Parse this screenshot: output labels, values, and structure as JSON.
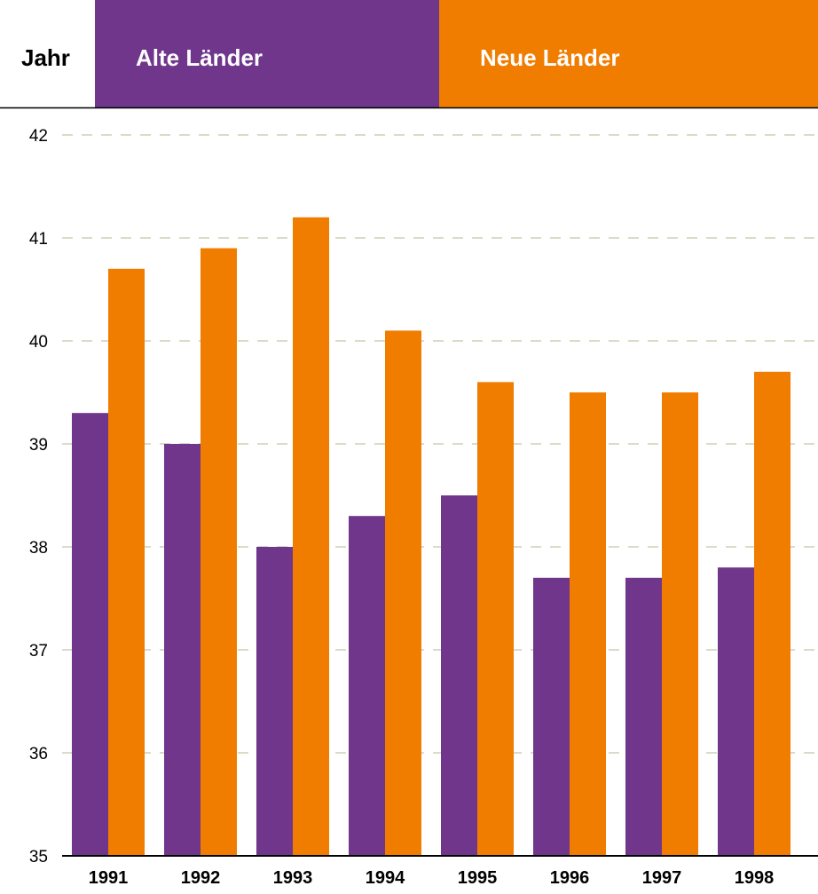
{
  "colors": {
    "alte": "#6f368b",
    "neue": "#f07c00",
    "grid": "#d9dcc8",
    "axis": "#000000"
  },
  "chart_data": {
    "type": "bar",
    "title": "",
    "xlabel": "Jahr",
    "ylabel": "",
    "ylim": [
      35,
      42
    ],
    "yticks": [
      35,
      36,
      37,
      38,
      39,
      40,
      41,
      42
    ],
    "grid": true,
    "legend_position": "top",
    "categories": [
      "1991",
      "1992",
      "1993",
      "1994",
      "1995",
      "1996",
      "1997",
      "1998"
    ],
    "series": [
      {
        "name": "Alte Länder",
        "values": [
          39.3,
          39.0,
          38.0,
          38.3,
          38.5,
          37.7,
          37.7,
          37.8
        ]
      },
      {
        "name": "Neue Länder",
        "values": [
          40.7,
          40.9,
          41.2,
          40.1,
          39.6,
          39.5,
          39.5,
          39.7
        ]
      }
    ]
  }
}
